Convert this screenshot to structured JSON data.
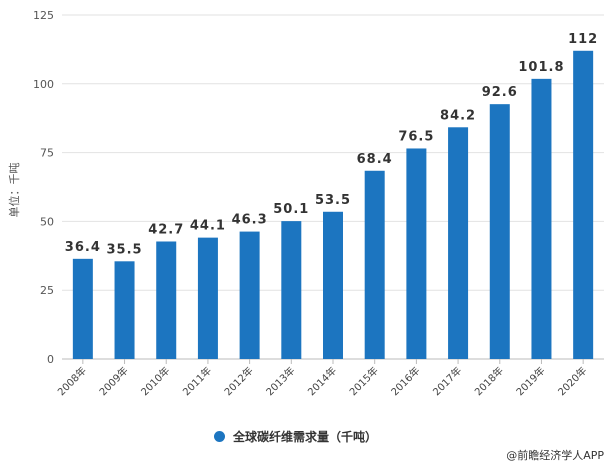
{
  "chart_data": {
    "type": "bar",
    "categories": [
      "2008年",
      "2009年",
      "2010年",
      "2011年",
      "2012年",
      "2013年",
      "2014年",
      "2015年",
      "2016年",
      "2017年",
      "2018年",
      "2019年",
      "2020年"
    ],
    "series": [
      {
        "name": "全球碳纤维需求量（千吨）",
        "values": [
          36.4,
          35.5,
          42.7,
          44.1,
          46.3,
          50.1,
          53.5,
          68.4,
          76.5,
          84.2,
          92.6,
          101.8,
          112
        ]
      }
    ],
    "data_labels": [
      "36.4",
      "35.5",
      "42.7",
      "44.1",
      "46.3",
      "50.1",
      "53.5",
      "68.4",
      "76.5",
      "84.2",
      "92.6",
      "101.8",
      "112"
    ],
    "ylabel": "单位：千吨",
    "ylim": [
      0,
      125
    ],
    "yticks": [
      "0",
      "25",
      "50",
      "75",
      "100",
      "125"
    ],
    "grid": true,
    "legend": "bottom",
    "color": "#1c75c0"
  },
  "source": "@前瞻经济学人APP"
}
